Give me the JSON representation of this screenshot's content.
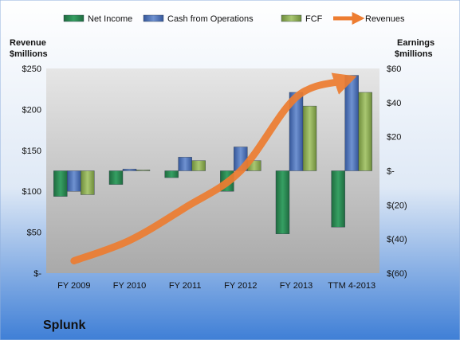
{
  "chart_data": {
    "type": "bar",
    "company": "Splunk",
    "categories": [
      "FY 2009",
      "FY 2010",
      "FY 2011",
      "FY 2012",
      "FY 2013",
      "TTM 4-2013"
    ],
    "left_axis": {
      "title_lines": [
        "Revenue",
        "$millions"
      ],
      "range": [
        0,
        250
      ],
      "ticks": [
        0,
        50,
        100,
        150,
        200,
        250
      ],
      "tick_labels": [
        "$-",
        "$50",
        "$100",
        "$150",
        "$200",
        "$250"
      ]
    },
    "right_axis": {
      "title_lines": [
        "Earnings",
        "$millions"
      ],
      "range": [
        -60,
        60
      ],
      "ticks": [
        -60,
        -40,
        -20,
        0,
        20,
        40,
        60
      ],
      "tick_labels": [
        "$(60)",
        "$(40)",
        "$(20)",
        "$-",
        "$20",
        "$40",
        "$60"
      ]
    },
    "series": [
      {
        "name": "Net Income",
        "kind": "bar",
        "axis": "right",
        "color": "#2e8b57",
        "values": [
          -15,
          -8,
          -4,
          -12,
          -37,
          -33
        ]
      },
      {
        "name": "Cash from Operations",
        "kind": "bar",
        "axis": "right",
        "color": "#4f74b8",
        "values": [
          -12,
          1,
          8,
          14,
          46,
          56
        ]
      },
      {
        "name": "FCF",
        "kind": "bar",
        "axis": "right",
        "color": "#8fb056",
        "values": [
          -14,
          0.5,
          6,
          6,
          38,
          46
        ]
      },
      {
        "name": "Revenues",
        "kind": "arrow-line",
        "axis": "left",
        "color": "#ed7d31",
        "values": [
          15,
          40,
          80,
          125,
          215,
          235
        ]
      }
    ],
    "legend_position": "top",
    "grid": false
  }
}
